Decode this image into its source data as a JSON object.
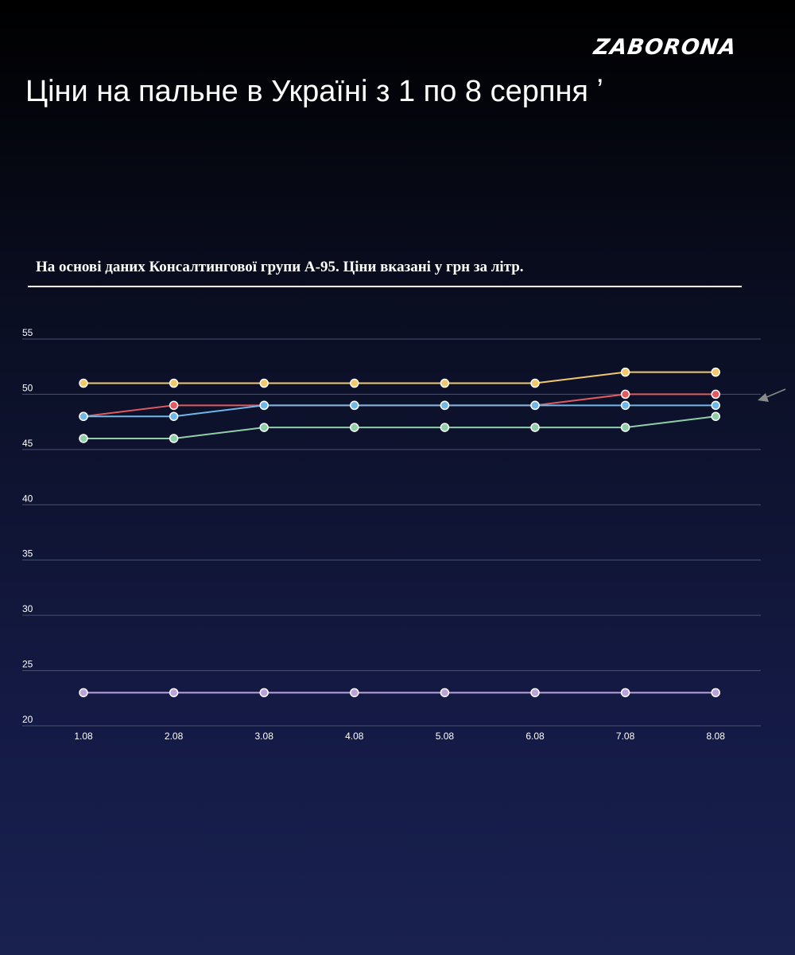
{
  "logo": "ZABORONA",
  "title": "Ціни на пальне в Україні з 1 по 8 серпня ʼ",
  "subtitle": "На основі даних Консалтингової групи А-95. Ціни вказані у грн за літр.",
  "chart_data": {
    "type": "line",
    "categories": [
      "1.08",
      "2.08",
      "3.08",
      "4.08",
      "5.08",
      "6.08",
      "7.08",
      "8.08"
    ],
    "ylim": [
      20,
      55
    ],
    "yticks": [
      20,
      25,
      30,
      35,
      40,
      45,
      50,
      55
    ],
    "grid": true,
    "legend": "none",
    "series": [
      {
        "color": "#f2c86b",
        "values": [
          51,
          51,
          51,
          51,
          51,
          51,
          52,
          52
        ]
      },
      {
        "color": "#e05a5f",
        "values": [
          48,
          49,
          49,
          49,
          49,
          49,
          50,
          50
        ]
      },
      {
        "color": "#6fb8e8",
        "values": [
          48,
          48,
          49,
          49,
          49,
          49,
          49,
          49
        ]
      },
      {
        "color": "#8fcfa7",
        "values": [
          46,
          46,
          47,
          47,
          47,
          47,
          47,
          48
        ]
      },
      {
        "color": "#b9a3dc",
        "values": [
          23,
          23,
          23,
          23,
          23,
          23,
          23,
          23
        ]
      }
    ],
    "gridline_color": "#4a5070",
    "annotation_arrow_color": "#8a8a8a"
  }
}
